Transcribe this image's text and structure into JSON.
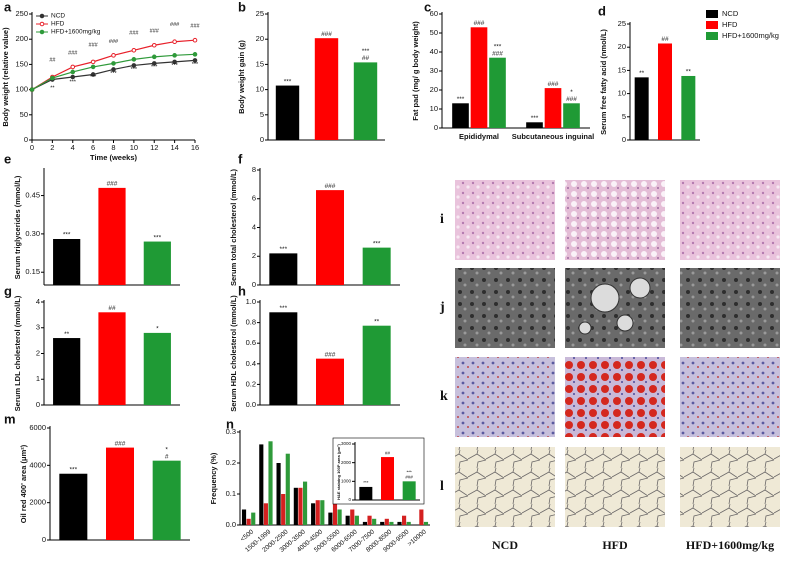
{
  "chart_data": [
    {
      "type": "line",
      "panel_label": "a",
      "y_label": "Body weight (relative value)",
      "x_label": "Time (weeks)",
      "x": [
        0,
        2,
        4,
        6,
        8,
        10,
        12,
        14,
        16
      ],
      "xlim": [
        0,
        16
      ],
      "xticks": [
        0,
        2,
        4,
        6,
        8,
        10,
        12,
        14,
        16
      ],
      "ylim": [
        0,
        250
      ],
      "yticks": [
        0,
        50,
        100,
        150,
        200,
        250
      ],
      "legend": "upper left",
      "series": [
        {
          "name": "NCD",
          "color": "#333333",
          "values": [
            100,
            120,
            125,
            130,
            140,
            148,
            152,
            155,
            158
          ]
        },
        {
          "name": "HFD",
          "color": "#e8202a",
          "values": [
            100,
            125,
            145,
            155,
            168,
            178,
            188,
            195,
            198
          ],
          "annotations": [
            null,
            "##",
            "###",
            "###",
            "###",
            "###",
            "###",
            "###",
            "###"
          ]
        },
        {
          "name": "HFD+1600mg/kg",
          "color": "#2f9a3a",
          "values": [
            100,
            123,
            135,
            145,
            152,
            160,
            165,
            168,
            170
          ],
          "annotations": [
            null,
            "**",
            "***",
            "***",
            "***",
            "***",
            "***",
            "***",
            "***"
          ]
        }
      ]
    },
    {
      "type": "bar",
      "panel_label": "b",
      "y_label": "Body weight gain (g)",
      "ylim": [
        0,
        25
      ],
      "yticks": [
        0,
        5,
        10,
        15,
        20,
        25
      ],
      "values": [
        10.8,
        20.2,
        15.4
      ],
      "colors": [
        "#000000",
        "#ff0000",
        "#1f9a35"
      ],
      "annotations": [
        [
          "***"
        ],
        [
          "###"
        ],
        [
          "***",
          "##"
        ]
      ]
    },
    {
      "type": "grouped-bar",
      "panel_label": "c",
      "y_label": "Fat pad (mg/ g body weight)",
      "ylim": [
        0,
        60
      ],
      "yticks": [
        0,
        10,
        20,
        30,
        40,
        50,
        60
      ],
      "categories": [
        "Epididymal",
        "Subcutaneous inguinal"
      ],
      "series": [
        {
          "color": "#000000",
          "values": [
            13,
            3
          ],
          "annotations": [
            [
              "***"
            ],
            [
              "***"
            ]
          ]
        },
        {
          "color": "#ff0000",
          "values": [
            53,
            21
          ],
          "annotations": [
            [
              "###"
            ],
            [
              "###"
            ]
          ]
        },
        {
          "color": "#1f9a35",
          "values": [
            37,
            13
          ],
          "annotations": [
            [
              "***",
              "###"
            ],
            [
              "*",
              "###"
            ]
          ]
        }
      ]
    },
    {
      "type": "bar",
      "panel_label": "d",
      "y_label": "Serum free fatty acid (nmol/L)",
      "ylim": [
        0,
        25
      ],
      "yticks": [
        0,
        5,
        10,
        15,
        20,
        25
      ],
      "legend": "right",
      "series": [
        {
          "name": "NCD",
          "color": "#000000",
          "values": [
            13.5
          ],
          "annotations": [
            [
              "**"
            ]
          ]
        },
        {
          "name": "HFD",
          "color": "#ff0000",
          "values": [
            20.8
          ],
          "annotations": [
            [
              "##"
            ]
          ]
        },
        {
          "name": "HFD+1600mg/kg",
          "color": "#1f9a35",
          "values": [
            13.8
          ],
          "annotations": [
            [
              "**"
            ]
          ]
        }
      ]
    },
    {
      "type": "bar",
      "panel_label": "e",
      "y_label": "Serum triglycerides (mmol/L)",
      "ylim": [
        0.1,
        0.55
      ],
      "yticks": [
        0.15,
        {
          "value": 0.3,
          "label": "0.30"
        },
        0.45
      ],
      "values": [
        0.28,
        0.48,
        0.27
      ],
      "colors": [
        "#000000",
        "#ff0000",
        "#1f9a35"
      ],
      "annotations": [
        [
          "***"
        ],
        [
          "###"
        ],
        [
          "***"
        ]
      ]
    },
    {
      "type": "bar",
      "panel_label": "f",
      "y_label": "Serum total cholesterol (mmol/L)",
      "ylim": [
        0,
        8
      ],
      "yticks": [
        0,
        2,
        4,
        6,
        8
      ],
      "values": [
        2.2,
        6.6,
        2.6
      ],
      "colors": [
        "#000000",
        "#ff0000",
        "#1f9a35"
      ],
      "annotations": [
        [
          "***"
        ],
        [
          "###"
        ],
        [
          "***"
        ]
      ]
    },
    {
      "type": "bar",
      "panel_label": "g",
      "y_label": "Serum LDL cholesterol (mmol/L)",
      "ylim": [
        0,
        4
      ],
      "yticks": [
        0,
        1,
        2,
        3,
        4
      ],
      "values": [
        2.6,
        3.6,
        2.8
      ],
      "colors": [
        "#000000",
        "#ff0000",
        "#1f9a35"
      ],
      "annotations": [
        [
          "**"
        ],
        [
          "##"
        ],
        [
          "*"
        ]
      ]
    },
    {
      "type": "bar",
      "panel_label": "h",
      "y_label": "Serum HDL cholesterol (mmol/L)",
      "ylim": [
        0,
        1
      ],
      "yticks": [
        {
          "value": 0,
          "label": "0.0"
        },
        0.2,
        0.4,
        0.6,
        0.8,
        {
          "value": 1,
          "label": "1.0"
        }
      ],
      "values": [
        0.9,
        0.45,
        0.77
      ],
      "colors": [
        "#000000",
        "#ff0000",
        "#1f9a35"
      ],
      "annotations": [
        [
          "***"
        ],
        [
          "###"
        ],
        [
          "**"
        ]
      ]
    },
    {
      "type": "bar",
      "panel_label": "m",
      "y_label": "Oil red 400' area (μm²)",
      "ylim": [
        0,
        6000
      ],
      "yticks": [
        0,
        2000,
        4000,
        6000
      ],
      "values": [
        3550,
        4950,
        4250
      ],
      "colors": [
        "#000000",
        "#ff0000",
        "#1f9a35"
      ],
      "annotations": [
        [
          "***"
        ],
        [
          "###"
        ],
        [
          "*",
          "#"
        ]
      ]
    },
    {
      "type": "grouped-bar",
      "panel_label": "n",
      "y_label": "Frequency (%)",
      "ylim": [
        0,
        0.3
      ],
      "yticks": [
        {
          "value": 0,
          "label": "0.0"
        },
        0.1,
        0.2,
        0.3
      ],
      "rotate_categories": true,
      "categories": [
        "<500",
        "1500-1999",
        "2000-2500",
        "3000-3500",
        "4000-4500",
        "5000-5500",
        "6000-6500",
        "7000-7500",
        "8000-8500",
        "9000-9500",
        ">10000"
      ],
      "series": [
        {
          "color": "#000000",
          "values": [
            0.05,
            0.26,
            0.2,
            0.12,
            0.07,
            0.04,
            0.03,
            0.01,
            0.01,
            0.01,
            0
          ]
        },
        {
          "color": "#d42020",
          "values": [
            0.02,
            0.07,
            0.1,
            0.12,
            0.08,
            0.07,
            0.05,
            0.03,
            0.02,
            0.03,
            0.05
          ]
        },
        {
          "color": "#2f9a3a",
          "values": [
            0.04,
            0.27,
            0.23,
            0.14,
            0.08,
            0.05,
            0.03,
            0.02,
            0.01,
            0.01,
            0.01
          ]
        }
      ]
    },
    {
      "type": "bar",
      "y_label": "H&E staining 100P area (μm²)",
      "ylim": [
        0,
        3000
      ],
      "yticks": [
        0,
        1000,
        2000,
        3000
      ],
      "values": [
        700,
        2300,
        1000
      ],
      "colors": [
        "#000000",
        "#ff0000",
        "#1f9a35"
      ],
      "annotations": [
        [
          "***"
        ],
        [
          "##"
        ],
        [
          "***",
          "###"
        ]
      ]
    }
  ],
  "images": {
    "row_labels": [
      "i",
      "j",
      "k",
      "l"
    ],
    "column_labels": [
      "NCD",
      "HFD",
      "HFD+1600mg/kg"
    ]
  }
}
